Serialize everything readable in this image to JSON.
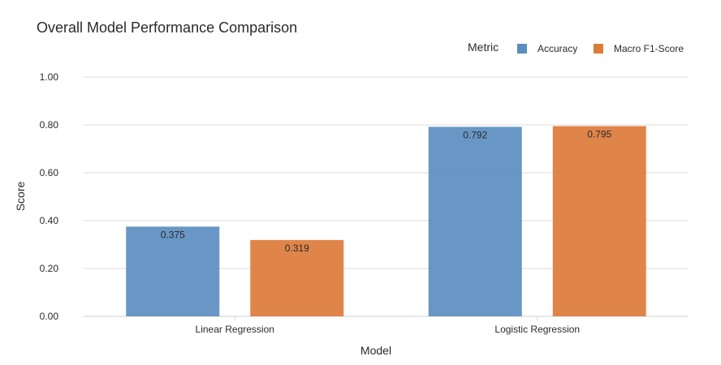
{
  "chart_data": {
    "type": "bar",
    "title": "Overall Model Performance Comparison",
    "xlabel": "Model",
    "ylabel": "Score",
    "categories": [
      "Linear Regression",
      "Logistic Regression"
    ],
    "series": [
      {
        "name": "Accuracy",
        "values": [
          0.375,
          0.792
        ],
        "labels": [
          "0.375",
          "0.792"
        ],
        "color": "#5b8ec0"
      },
      {
        "name": "Macro F1-Score",
        "values": [
          0.319,
          0.795
        ],
        "labels": [
          "0.319",
          "0.795"
        ],
        "color": "#dd7b3b"
      }
    ],
    "ylim": [
      0,
      1
    ],
    "yticks": [
      0,
      0.2,
      0.4,
      0.6,
      0.8,
      1.0
    ],
    "ytick_labels": [
      "0.00",
      "0.20",
      "0.40",
      "0.60",
      "0.80",
      "1.00"
    ],
    "legend_title": "Metric",
    "legend_position": "top-right",
    "grid": true
  }
}
